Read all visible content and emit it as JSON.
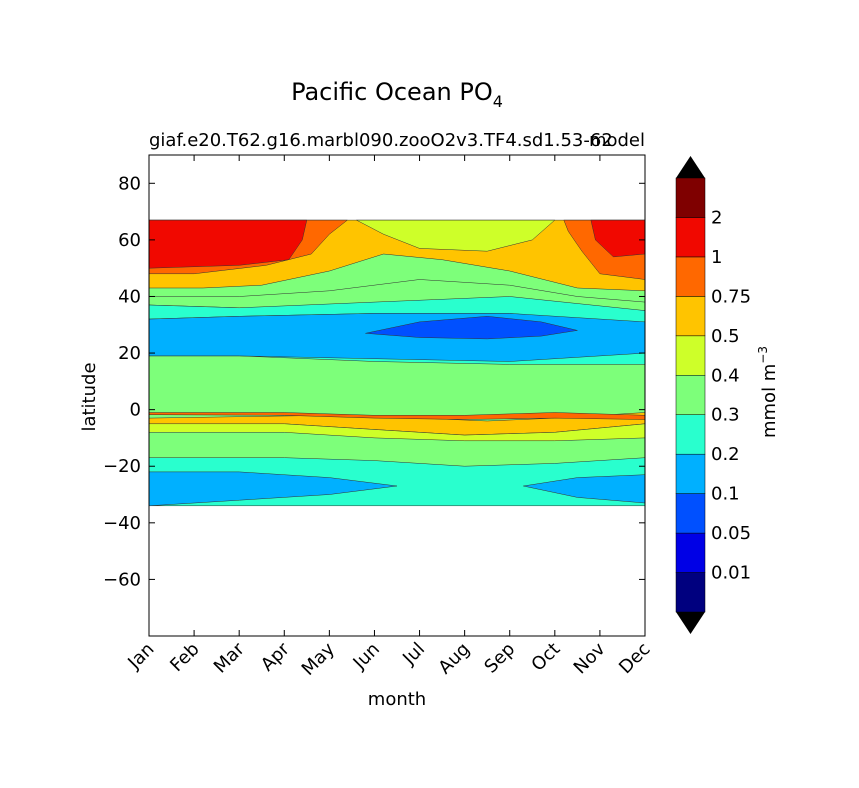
{
  "chart_data": {
    "type": "contour",
    "title_main": "Pacific Ocean PO",
    "title_sub": "4",
    "subtitle_left": "giaf.e20.T62.g16.marbl090.zooO2v3.TF4.sd1.53-62",
    "subtitle_right": "model",
    "xlabel": "month",
    "ylabel": "latitude",
    "x_tick_labels": [
      "Jan",
      "Feb",
      "Mar",
      "Apr",
      "May",
      "Jun",
      "Jul",
      "Aug",
      "Sep",
      "Oct",
      "Nov",
      "Dec"
    ],
    "x_range": [
      0,
      11
    ],
    "y_range": [
      -80,
      90
    ],
    "y_ticks": [
      80,
      60,
      40,
      20,
      0,
      -20,
      -40,
      -60
    ],
    "y_tick_labels": [
      "80",
      "60",
      "40",
      "20",
      "0",
      "−20",
      "−40",
      "−60"
    ],
    "data_extent_latitude": [
      -34,
      67
    ],
    "colorbar": {
      "label_main": "mmol m",
      "label_sup": "−3",
      "levels": [
        "0.01",
        "0.05",
        "0.1",
        "0.2",
        "0.3",
        "0.4",
        "0.5",
        "0.75",
        "1",
        "2"
      ],
      "colors": [
        "#00007f",
        "#0000e6",
        "#0050ff",
        "#00b0ff",
        "#29ffce",
        "#7dff7a",
        "#ceff29",
        "#ffc400",
        "#ff6800",
        "#f10800",
        "#7f0000"
      ],
      "extend": "both",
      "extend_colors": {
        "low": "#000000",
        "high": "#000000"
      }
    },
    "bands": [
      {
        "name": "north-red",
        "level_index": 9,
        "lat_range": [
          50,
          67
        ],
        "months": [
          0,
          3.5
        ]
      },
      {
        "name": "north-orange",
        "level_index": 8,
        "lat_range": [
          44,
          67
        ],
        "months": [
          0,
          11
        ]
      },
      {
        "name": "north-yellow",
        "level_index": 7,
        "lat_range": [
          40,
          67
        ],
        "months": [
          0,
          11
        ]
      },
      {
        "name": "mid-blue",
        "level_index": 3,
        "lat_range": [
          17,
          34
        ],
        "months": [
          0,
          11
        ]
      },
      {
        "name": "sept-deep-blue",
        "level_index": 2,
        "lat_range": [
          25,
          33
        ],
        "months": [
          4.8,
          9.5
        ]
      },
      {
        "name": "equatorial-yellow",
        "level_index": 7,
        "lat_range": [
          -3,
          3
        ],
        "months": [
          0,
          11
        ]
      },
      {
        "name": "south-blue",
        "level_index": 3,
        "lat_range": [
          -34,
          -22
        ],
        "months": [
          0,
          11
        ]
      }
    ]
  }
}
